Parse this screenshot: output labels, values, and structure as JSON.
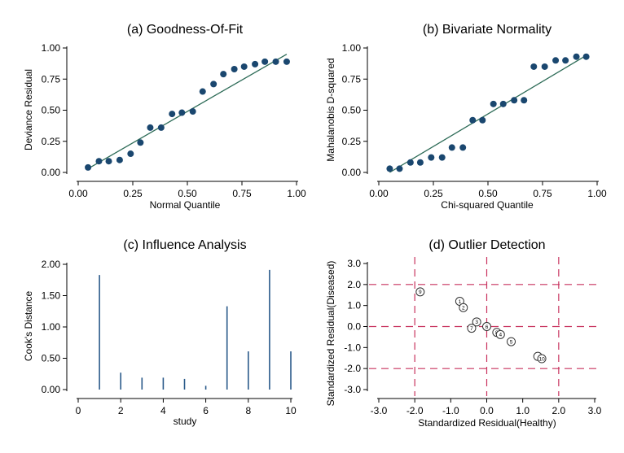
{
  "colors": {
    "marker": "#1a476f",
    "fit_line": "#2d6b57",
    "spike": "#2a5a8a",
    "ref_line": "#c8325e",
    "outlier_marker_stroke": "#333333"
  },
  "chart_data": [
    {
      "id": "a",
      "type": "scatter",
      "title": "(a) Goodness-Of-Fit",
      "xlabel": "Normal Quantile",
      "ylabel": "Deviance Residual",
      "xlim": [
        0,
        1
      ],
      "ylim": [
        0,
        1
      ],
      "xticks": [
        "0.00",
        "0.25",
        "0.50",
        "0.75",
        "1.00"
      ],
      "yticks": [
        "0.00",
        "0.25",
        "0.50",
        "0.75",
        "1.00"
      ],
      "x": [
        0.045,
        0.095,
        0.14,
        0.19,
        0.24,
        0.285,
        0.33,
        0.38,
        0.43,
        0.475,
        0.525,
        0.57,
        0.62,
        0.665,
        0.715,
        0.76,
        0.81,
        0.855,
        0.905,
        0.955
      ],
      "y": [
        0.04,
        0.09,
        0.09,
        0.1,
        0.15,
        0.24,
        0.36,
        0.36,
        0.47,
        0.48,
        0.49,
        0.65,
        0.71,
        0.79,
        0.83,
        0.85,
        0.87,
        0.89,
        0.89,
        0.89
      ],
      "fit_line": {
        "x": [
          0.045,
          0.955
        ],
        "y": [
          0.03,
          0.95
        ]
      }
    },
    {
      "id": "b",
      "type": "scatter",
      "title": "(b) Bivariate Normality",
      "xlabel": "Chi-squared Quantile",
      "ylabel": "Mahalanobis D-squared",
      "xlim": [
        0,
        1
      ],
      "ylim": [
        0,
        1
      ],
      "xticks": [
        "0.00",
        "0.25",
        "0.50",
        "0.75",
        "1.00"
      ],
      "yticks": [
        "0.00",
        "0.25",
        "0.50",
        "0.75",
        "1.00"
      ],
      "x": [
        0.05,
        0.095,
        0.145,
        0.19,
        0.24,
        0.29,
        0.335,
        0.385,
        0.43,
        0.475,
        0.525,
        0.57,
        0.62,
        0.665,
        0.71,
        0.76,
        0.81,
        0.855,
        0.905,
        0.95
      ],
      "y": [
        0.03,
        0.03,
        0.08,
        0.08,
        0.12,
        0.12,
        0.2,
        0.2,
        0.42,
        0.42,
        0.55,
        0.55,
        0.58,
        0.58,
        0.85,
        0.85,
        0.9,
        0.9,
        0.93,
        0.93
      ],
      "fit_line": {
        "x": [
          0.05,
          0.95
        ],
        "y": [
          0.0,
          0.94
        ]
      }
    },
    {
      "id": "c",
      "type": "bar",
      "title": "(c) Influence Analysis",
      "xlabel": "study",
      "ylabel": "Cook's Distance",
      "xlim": [
        0,
        10
      ],
      "ylim": [
        0,
        2
      ],
      "xticks": [
        "0",
        "2",
        "4",
        "6",
        "8",
        "10"
      ],
      "yticks": [
        "0.00",
        "0.50",
        "1.00",
        "1.50",
        "2.00"
      ],
      "categories": [
        1,
        2,
        3,
        4,
        5,
        6,
        7,
        8,
        9,
        10
      ],
      "values": [
        1.83,
        0.27,
        0.19,
        0.19,
        0.17,
        0.06,
        1.33,
        0.61,
        1.91,
        0.61
      ]
    },
    {
      "id": "d",
      "type": "scatter",
      "title": "(d) Outlier Detection",
      "xlabel": "Standardized Residual(Healthy)",
      "ylabel": "Standardized Residual(Diseased)",
      "xlim": [
        -3,
        3
      ],
      "ylim": [
        -3,
        3
      ],
      "xticks": [
        "-3.0",
        "-2.0",
        "-1.0",
        "0.0",
        "1.0",
        "2.0",
        "3.0"
      ],
      "yticks": [
        "-3.0",
        "-2.0",
        "-1.0",
        "0.0",
        "1.0",
        "2.0",
        "3.0"
      ],
      "ref_lines": {
        "x": [
          -2,
          0,
          2
        ],
        "y": [
          -2,
          0,
          2
        ]
      },
      "points": [
        {
          "label": "9",
          "x": -1.85,
          "y": 1.65
        },
        {
          "label": "1",
          "x": -0.75,
          "y": 1.2
        },
        {
          "label": "2",
          "x": -0.65,
          "y": 0.9
        },
        {
          "label": "3",
          "x": -0.28,
          "y": 0.22
        },
        {
          "label": "7",
          "x": -0.42,
          "y": -0.08
        },
        {
          "label": "6",
          "x": 0.0,
          "y": 0.0
        },
        {
          "label": "8",
          "x": 0.28,
          "y": -0.28
        },
        {
          "label": "4",
          "x": 0.38,
          "y": -0.38
        },
        {
          "label": "5",
          "x": 0.68,
          "y": -0.72
        },
        {
          "label": "",
          "x": 1.42,
          "y": -1.42
        },
        {
          "label": "10",
          "x": 1.53,
          "y": -1.53
        }
      ]
    }
  ]
}
